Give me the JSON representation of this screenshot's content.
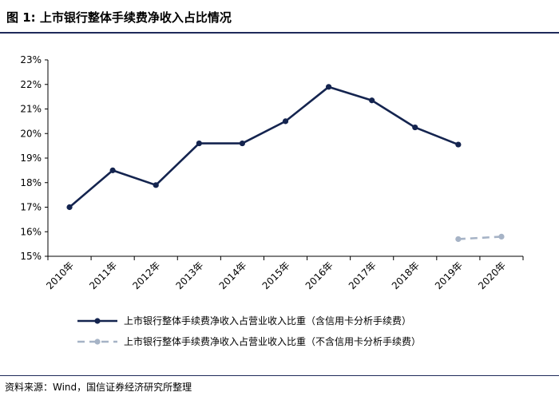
{
  "header": {
    "title": "图 1: 上市银行整体手续费净收入占比情况"
  },
  "footer": {
    "source": "资料来源：Wind，国信证券经济研究所整理"
  },
  "colors": {
    "series1": "#14244f",
    "series2": "#a6b3c6",
    "axis": "#000000"
  },
  "chart_data": {
    "type": "line",
    "categories": [
      "2010年",
      "2011年",
      "2012年",
      "2013年",
      "2014年",
      "2015年",
      "2016年",
      "2017年",
      "2018年",
      "2019年",
      "2020年"
    ],
    "ylim": [
      15,
      23
    ],
    "yticks": [
      "15%",
      "16%",
      "17%",
      "18%",
      "19%",
      "20%",
      "21%",
      "22%",
      "23%"
    ],
    "grid": false,
    "legend": "bottom",
    "series": [
      {
        "name": "上市银行整体手续费净收入占营业收入比重（含信用卡分析手续费）",
        "values": [
          17.0,
          18.5,
          17.9,
          19.6,
          19.6,
          20.5,
          21.9,
          21.35,
          20.25,
          19.55,
          null
        ],
        "style": "solid"
      },
      {
        "name": "上市银行整体手续费净收入占营业收入比重（不含信用卡分析手续费）",
        "values": [
          null,
          null,
          null,
          null,
          null,
          null,
          null,
          null,
          null,
          15.7,
          15.8
        ],
        "style": "dashed"
      }
    ]
  }
}
